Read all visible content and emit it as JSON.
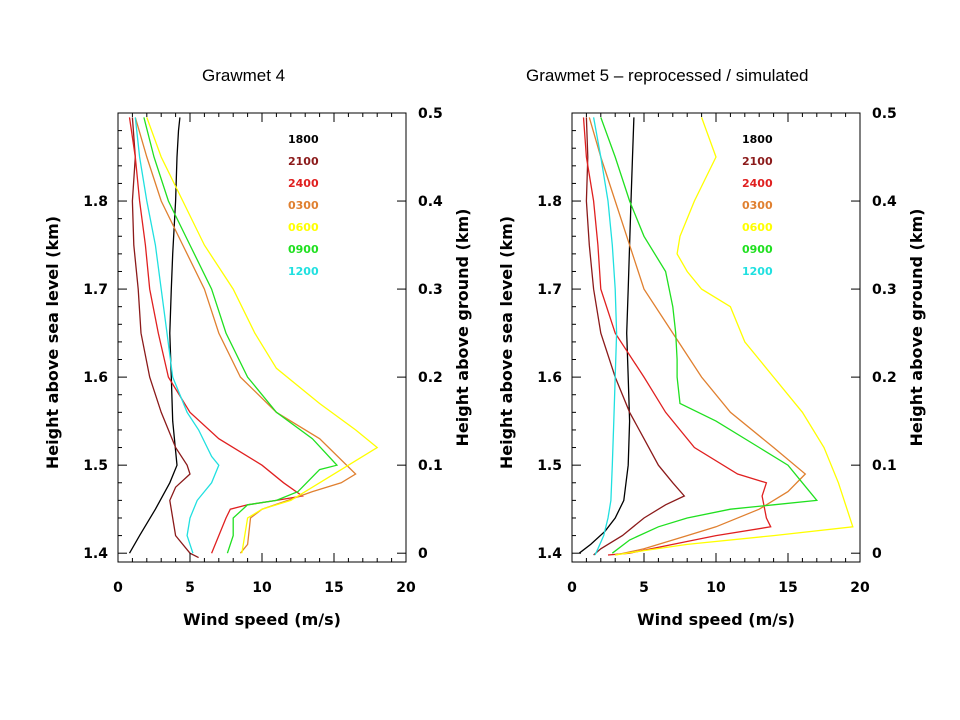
{
  "slide": {
    "titles": [
      "Grawmet 4",
      "Grawmet 5 – reprocessed / simulated"
    ]
  },
  "chart_data": [
    {
      "type": "line",
      "title": "Grawmet 4",
      "xlabel": "Wind speed (m/s)",
      "ylabel": "Height above sea level (km)",
      "y2label": "Height above ground (km)",
      "xlim": [
        0,
        20
      ],
      "ylim": [
        1.39,
        1.9
      ],
      "y2lim": [
        -0.01,
        0.5
      ],
      "xticks": [
        0,
        5,
        10,
        15,
        20
      ],
      "yticks": [
        1.4,
        1.5,
        1.6,
        1.7,
        1.8
      ],
      "y2ticks": [
        0.0,
        0.1,
        0.2,
        0.3,
        0.4,
        0.5
      ],
      "grid": false,
      "legend_position": "top-right",
      "series": [
        {
          "name": "1800",
          "color": "#000000",
          "points": [
            [
              0.8,
              1.4
            ],
            [
              1.5,
              1.42
            ],
            [
              2.6,
              1.45
            ],
            [
              3.6,
              1.48
            ],
            [
              4.1,
              1.5
            ],
            [
              3.8,
              1.55
            ],
            [
              3.7,
              1.6
            ],
            [
              3.6,
              1.65
            ],
            [
              3.7,
              1.7
            ],
            [
              3.8,
              1.74
            ],
            [
              4.0,
              1.8
            ],
            [
              4.1,
              1.85
            ],
            [
              4.2,
              1.88
            ],
            [
              4.3,
              1.895
            ]
          ]
        },
        {
          "name": "2100",
          "color": "#8b1a1a",
          "points": [
            [
              1.0,
              1.895
            ],
            [
              1.2,
              1.85
            ],
            [
              1.0,
              1.8
            ],
            [
              1.1,
              1.75
            ],
            [
              1.4,
              1.7
            ],
            [
              1.6,
              1.65
            ],
            [
              2.2,
              1.6
            ],
            [
              3.0,
              1.56
            ],
            [
              4.0,
              1.52
            ],
            [
              4.8,
              1.5
            ],
            [
              5.0,
              1.49
            ],
            [
              4.0,
              1.475
            ],
            [
              3.6,
              1.46
            ],
            [
              3.8,
              1.44
            ],
            [
              4.0,
              1.42
            ],
            [
              5.0,
              1.4
            ],
            [
              5.6,
              1.395
            ]
          ]
        },
        {
          "name": "2400",
          "color": "#e02020",
          "points": [
            [
              0.8,
              1.895
            ],
            [
              1.2,
              1.85
            ],
            [
              1.5,
              1.8
            ],
            [
              1.9,
              1.75
            ],
            [
              2.2,
              1.7
            ],
            [
              2.8,
              1.65
            ],
            [
              3.5,
              1.6
            ],
            [
              5.0,
              1.56
            ],
            [
              7.0,
              1.53
            ],
            [
              10.0,
              1.5
            ],
            [
              11.5,
              1.48
            ],
            [
              12.8,
              1.465
            ],
            [
              11.0,
              1.46
            ],
            [
              9.0,
              1.455
            ],
            [
              7.8,
              1.45
            ],
            [
              7.5,
              1.44
            ],
            [
              7.0,
              1.42
            ],
            [
              6.5,
              1.4
            ]
          ]
        },
        {
          "name": "0300",
          "color": "#e08030",
          "points": [
            [
              1.2,
              1.895
            ],
            [
              2.0,
              1.85
            ],
            [
              3.0,
              1.8
            ],
            [
              4.5,
              1.75
            ],
            [
              6.0,
              1.7
            ],
            [
              7.0,
              1.65
            ],
            [
              8.5,
              1.6
            ],
            [
              11.0,
              1.56
            ],
            [
              14.0,
              1.53
            ],
            [
              16.5,
              1.49
            ],
            [
              15.5,
              1.48
            ],
            [
              13.5,
              1.47
            ],
            [
              11.8,
              1.46
            ],
            [
              10.0,
              1.45
            ],
            [
              9.2,
              1.44
            ],
            [
              9.0,
              1.41
            ],
            [
              8.5,
              1.4
            ]
          ]
        },
        {
          "name": "0600",
          "color": "#ffff00",
          "points": [
            [
              2.0,
              1.895
            ],
            [
              3.0,
              1.85
            ],
            [
              4.5,
              1.8
            ],
            [
              6.0,
              1.75
            ],
            [
              8.0,
              1.7
            ],
            [
              9.5,
              1.65
            ],
            [
              11.0,
              1.61
            ],
            [
              14.0,
              1.57
            ],
            [
              16.5,
              1.54
            ],
            [
              18.0,
              1.52
            ],
            [
              16.0,
              1.5
            ],
            [
              14.0,
              1.48
            ],
            [
              12.0,
              1.46
            ],
            [
              10.0,
              1.45
            ],
            [
              9.0,
              1.44
            ],
            [
              8.7,
              1.41
            ],
            [
              8.6,
              1.4
            ]
          ]
        },
        {
          "name": "0900",
          "color": "#20e020",
          "points": [
            [
              1.8,
              1.895
            ],
            [
              2.5,
              1.85
            ],
            [
              3.5,
              1.8
            ],
            [
              5.0,
              1.75
            ],
            [
              6.5,
              1.7
            ],
            [
              7.5,
              1.65
            ],
            [
              9.0,
              1.6
            ],
            [
              11.0,
              1.56
            ],
            [
              13.5,
              1.53
            ],
            [
              15.2,
              1.5
            ],
            [
              14.0,
              1.495
            ],
            [
              12.5,
              1.47
            ],
            [
              11.0,
              1.46
            ],
            [
              9.0,
              1.455
            ],
            [
              8.0,
              1.44
            ],
            [
              8.0,
              1.42
            ],
            [
              7.6,
              1.4
            ]
          ]
        },
        {
          "name": "1200",
          "color": "#20e0e0",
          "points": [
            [
              1.2,
              1.895
            ],
            [
              1.5,
              1.85
            ],
            [
              2.0,
              1.8
            ],
            [
              2.6,
              1.75
            ],
            [
              3.0,
              1.7
            ],
            [
              3.4,
              1.65
            ],
            [
              3.8,
              1.6
            ],
            [
              4.8,
              1.56
            ],
            [
              5.6,
              1.54
            ],
            [
              6.5,
              1.51
            ],
            [
              7.0,
              1.5
            ],
            [
              6.5,
              1.48
            ],
            [
              5.5,
              1.46
            ],
            [
              5.0,
              1.44
            ],
            [
              4.8,
              1.42
            ],
            [
              5.2,
              1.4
            ]
          ]
        }
      ]
    },
    {
      "type": "line",
      "title": "Grawmet 5 – reprocessed / simulated",
      "xlabel": "Wind speed (m/s)",
      "ylabel": "Height above sea level (km)",
      "y2label": "Height above ground (km)",
      "xlim": [
        0,
        20
      ],
      "ylim": [
        1.39,
        1.9
      ],
      "y2lim": [
        -0.01,
        0.5
      ],
      "xticks": [
        0,
        5,
        10,
        15,
        20
      ],
      "yticks": [
        1.4,
        1.5,
        1.6,
        1.7,
        1.8
      ],
      "y2ticks": [
        0.0,
        0.1,
        0.2,
        0.3,
        0.4,
        0.5
      ],
      "grid": false,
      "legend_position": "top-right",
      "series": [
        {
          "name": "1800",
          "color": "#000000",
          "points": [
            [
              0.5,
              1.4
            ],
            [
              1.3,
              1.41
            ],
            [
              2.3,
              1.425
            ],
            [
              3.0,
              1.44
            ],
            [
              3.6,
              1.46
            ],
            [
              3.9,
              1.5
            ],
            [
              4.0,
              1.55
            ],
            [
              3.9,
              1.6
            ],
            [
              3.8,
              1.65
            ],
            [
              3.9,
              1.7
            ],
            [
              4.0,
              1.75
            ],
            [
              4.1,
              1.8
            ],
            [
              4.2,
              1.85
            ],
            [
              4.3,
              1.895
            ]
          ]
        },
        {
          "name": "2100",
          "color": "#8b1a1a",
          "points": [
            [
              1.0,
              1.895
            ],
            [
              1.1,
              1.85
            ],
            [
              1.0,
              1.8
            ],
            [
              1.2,
              1.75
            ],
            [
              1.5,
              1.7
            ],
            [
              2.0,
              1.65
            ],
            [
              3.0,
              1.6
            ],
            [
              4.0,
              1.56
            ],
            [
              5.0,
              1.53
            ],
            [
              6.0,
              1.5
            ],
            [
              7.0,
              1.48
            ],
            [
              7.8,
              1.465
            ],
            [
              6.5,
              1.455
            ],
            [
              5.0,
              1.44
            ],
            [
              3.5,
              1.42
            ],
            [
              2.0,
              1.405
            ],
            [
              1.5,
              1.398
            ]
          ]
        },
        {
          "name": "2400",
          "color": "#e02020",
          "points": [
            [
              0.8,
              1.895
            ],
            [
              1.0,
              1.85
            ],
            [
              1.5,
              1.8
            ],
            [
              1.8,
              1.75
            ],
            [
              2.0,
              1.7
            ],
            [
              3.0,
              1.65
            ],
            [
              5.0,
              1.6
            ],
            [
              6.5,
              1.56
            ],
            [
              8.5,
              1.52
            ],
            [
              11.5,
              1.49
            ],
            [
              13.5,
              1.48
            ],
            [
              13.2,
              1.465
            ],
            [
              13.5,
              1.44
            ],
            [
              13.8,
              1.43
            ],
            [
              10.0,
              1.42
            ],
            [
              7.0,
              1.41
            ],
            [
              4.0,
              1.4
            ],
            [
              2.5,
              1.398
            ]
          ]
        },
        {
          "name": "0300",
          "color": "#e08030",
          "points": [
            [
              1.2,
              1.895
            ],
            [
              2.0,
              1.85
            ],
            [
              3.0,
              1.8
            ],
            [
              4.0,
              1.75
            ],
            [
              5.0,
              1.7
            ],
            [
              7.0,
              1.65
            ],
            [
              9.0,
              1.6
            ],
            [
              11.0,
              1.56
            ],
            [
              14.0,
              1.52
            ],
            [
              16.2,
              1.49
            ],
            [
              15.0,
              1.47
            ],
            [
              13.0,
              1.45
            ],
            [
              10.0,
              1.43
            ],
            [
              8.0,
              1.42
            ],
            [
              5.0,
              1.405
            ],
            [
              3.0,
              1.398
            ]
          ]
        },
        {
          "name": "0600",
          "color": "#ffff00",
          "points": [
            [
              9.0,
              1.895
            ],
            [
              10.0,
              1.85
            ],
            [
              8.5,
              1.8
            ],
            [
              7.5,
              1.76
            ],
            [
              7.3,
              1.74
            ],
            [
              8.0,
              1.72
            ],
            [
              9.0,
              1.7
            ],
            [
              11.0,
              1.68
            ],
            [
              12.0,
              1.64
            ],
            [
              14.0,
              1.6
            ],
            [
              16.0,
              1.56
            ],
            [
              17.5,
              1.52
            ],
            [
              18.5,
              1.48
            ],
            [
              19.5,
              1.43
            ],
            [
              14.0,
              1.42
            ],
            [
              8.0,
              1.41
            ],
            [
              5.0,
              1.403
            ],
            [
              3.0,
              1.398
            ]
          ]
        },
        {
          "name": "0900",
          "color": "#20e020",
          "points": [
            [
              2.0,
              1.895
            ],
            [
              3.0,
              1.85
            ],
            [
              4.0,
              1.8
            ],
            [
              5.0,
              1.76
            ],
            [
              6.5,
              1.72
            ],
            [
              7.0,
              1.68
            ],
            [
              7.2,
              1.65
            ],
            [
              7.3,
              1.62
            ],
            [
              7.3,
              1.6
            ],
            [
              7.5,
              1.57
            ],
            [
              10.0,
              1.55
            ],
            [
              13.0,
              1.52
            ],
            [
              15.0,
              1.5
            ],
            [
              16.0,
              1.48
            ],
            [
              17.0,
              1.46
            ],
            [
              14.0,
              1.455
            ],
            [
              11.0,
              1.45
            ],
            [
              8.0,
              1.44
            ],
            [
              6.0,
              1.43
            ],
            [
              4.0,
              1.415
            ],
            [
              2.8,
              1.4
            ]
          ]
        },
        {
          "name": "1200",
          "color": "#20e0e0",
          "points": [
            [
              1.5,
              1.895
            ],
            [
              2.0,
              1.85
            ],
            [
              2.5,
              1.8
            ],
            [
              2.8,
              1.75
            ],
            [
              3.0,
              1.7
            ],
            [
              3.1,
              1.65
            ],
            [
              3.0,
              1.6
            ],
            [
              2.9,
              1.55
            ],
            [
              2.8,
              1.5
            ],
            [
              2.7,
              1.46
            ],
            [
              2.5,
              1.44
            ],
            [
              2.2,
              1.42
            ],
            [
              1.8,
              1.405
            ],
            [
              1.6,
              1.398
            ]
          ]
        }
      ]
    }
  ]
}
